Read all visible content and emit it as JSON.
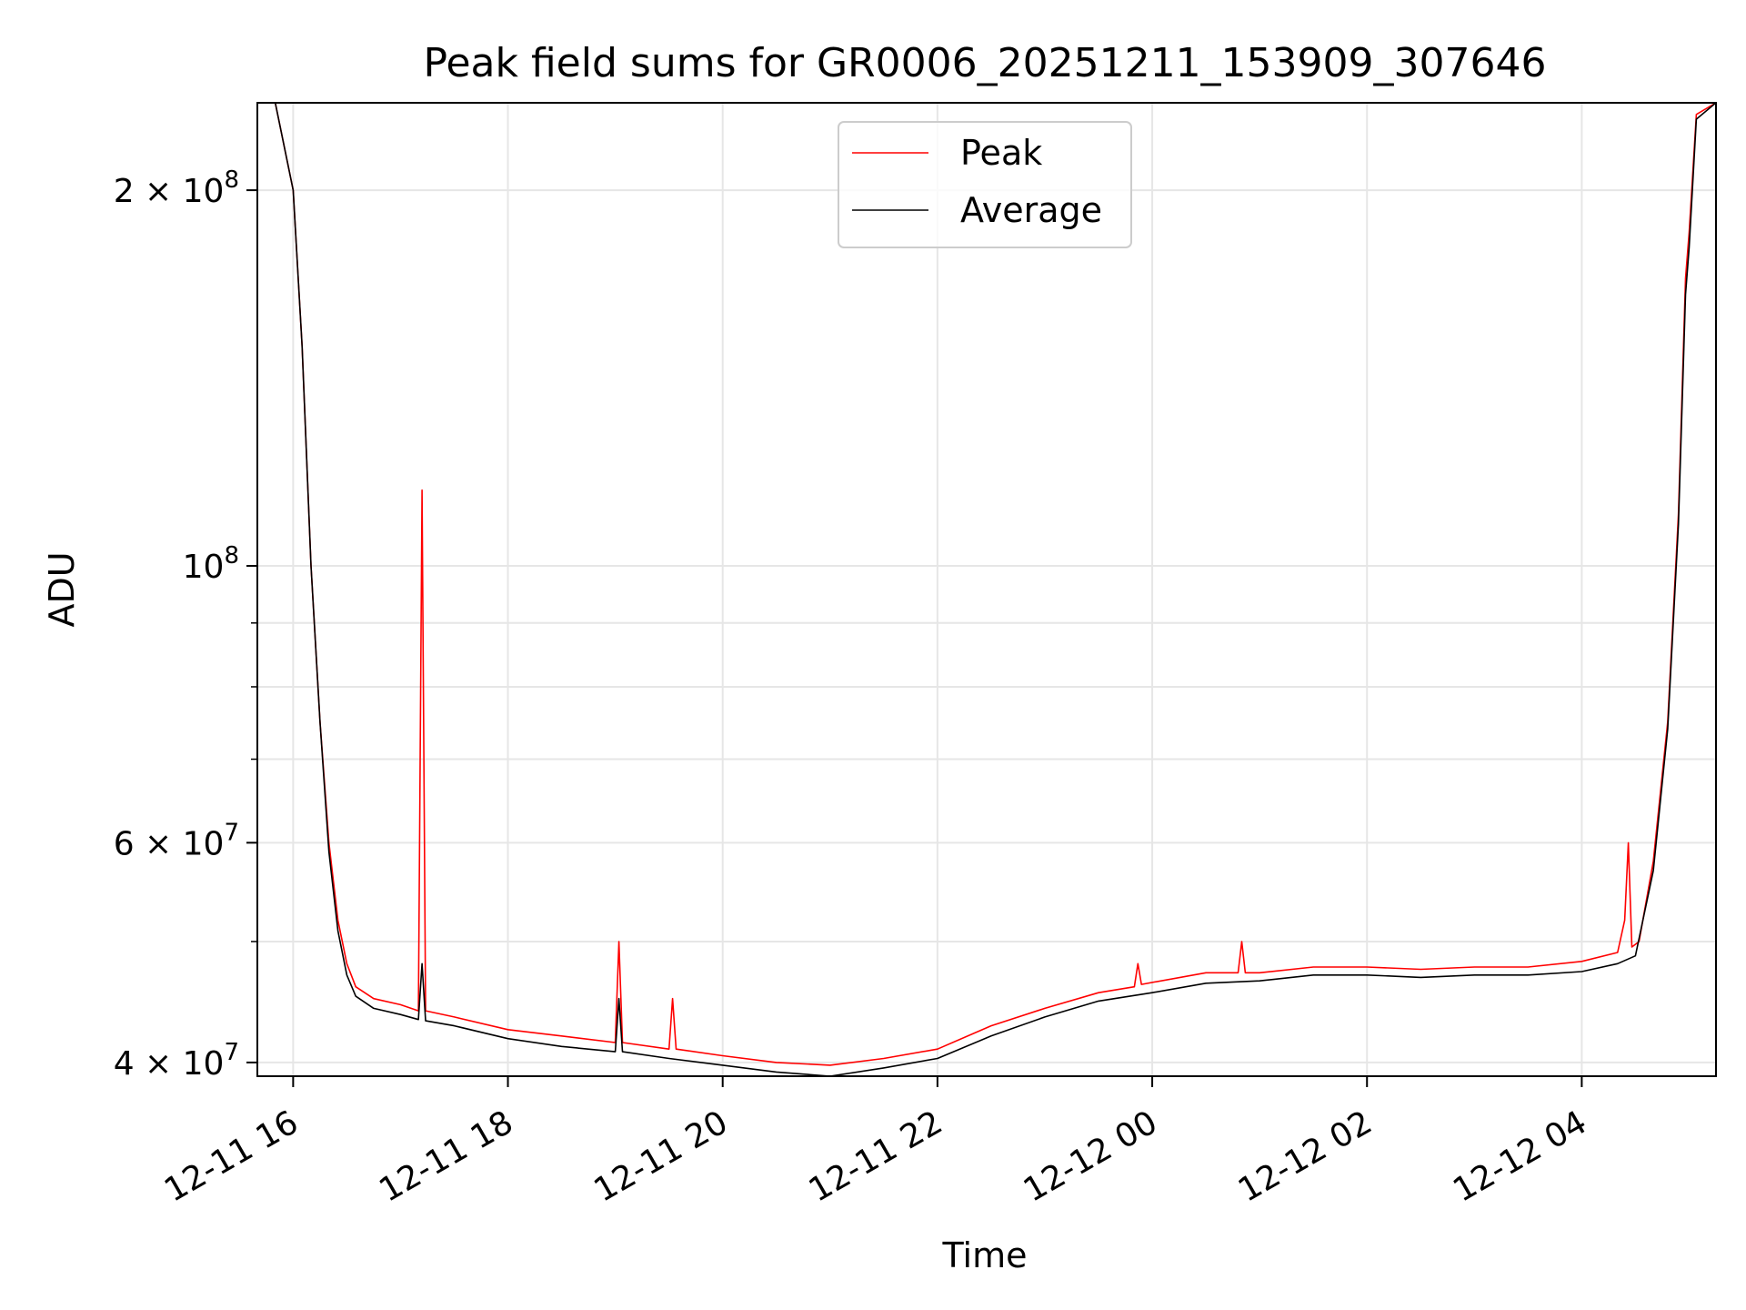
{
  "chart_data": {
    "type": "line",
    "title": "Peak field sums for GR0006_20251211_153909_307646",
    "xlabel": "Time",
    "ylabel": "ADU",
    "yscale": "log",
    "grid": true,
    "legend_placement": "upper center",
    "xlim": [
      "2025-12-11 15:40",
      "2025-12-12 05:15"
    ],
    "ylim": [
      39000000,
      235000000
    ],
    "x_ticks": [
      {
        "value": "2025-12-11 16:00",
        "label": "12-11 16"
      },
      {
        "value": "2025-12-11 18:00",
        "label": "12-11 18"
      },
      {
        "value": "2025-12-11 20:00",
        "label": "12-11 20"
      },
      {
        "value": "2025-12-11 22:00",
        "label": "12-11 22"
      },
      {
        "value": "2025-12-12 00:00",
        "label": "12-12 00"
      },
      {
        "value": "2025-12-12 02:00",
        "label": "12-12 02"
      },
      {
        "value": "2025-12-12 04:00",
        "label": "12-12 04"
      }
    ],
    "y_ticks_major": [
      {
        "value": 40000000,
        "label": "4 × 10",
        "exp": "7"
      },
      {
        "value": 60000000,
        "label": "6 × 10",
        "exp": "7"
      },
      {
        "value": 100000000,
        "label": "10",
        "exp": "8"
      },
      {
        "value": 200000000,
        "label": "2 × 10",
        "exp": "8"
      }
    ],
    "y_ticks_minor": [
      50000000,
      70000000,
      80000000,
      90000000
    ],
    "series": [
      {
        "name": "Peak",
        "color": "#ff0000",
        "x": [
          "2025-12-11 15:40",
          "2025-12-11 15:50",
          "2025-12-11 16:00",
          "2025-12-11 16:05",
          "2025-12-11 16:10",
          "2025-12-11 16:15",
          "2025-12-11 16:20",
          "2025-12-11 16:25",
          "2025-12-11 16:30",
          "2025-12-11 16:35",
          "2025-12-11 16:45",
          "2025-12-11 17:00",
          "2025-12-11 17:10",
          "2025-12-11 17:12",
          "2025-12-11 17:14",
          "2025-12-11 17:30",
          "2025-12-11 18:00",
          "2025-12-11 18:30",
          "2025-12-11 19:00",
          "2025-12-11 19:02",
          "2025-12-11 19:04",
          "2025-12-11 19:30",
          "2025-12-11 19:32",
          "2025-12-11 19:34",
          "2025-12-11 20:00",
          "2025-12-11 20:30",
          "2025-12-11 21:00",
          "2025-12-11 21:30",
          "2025-12-11 22:00",
          "2025-12-11 22:30",
          "2025-12-11 23:00",
          "2025-12-11 23:30",
          "2025-12-11 23:50",
          "2025-12-11 23:52",
          "2025-12-11 23:54",
          "2025-12-12 00:30",
          "2025-12-12 00:48",
          "2025-12-12 00:50",
          "2025-12-12 00:52",
          "2025-12-12 01:00",
          "2025-12-12 01:30",
          "2025-12-12 02:00",
          "2025-12-12 02:30",
          "2025-12-12 03:00",
          "2025-12-12 03:30",
          "2025-12-12 04:00",
          "2025-12-12 04:20",
          "2025-12-12 04:24",
          "2025-12-12 04:26",
          "2025-12-12 04:28",
          "2025-12-12 04:32",
          "2025-12-12 04:40",
          "2025-12-12 04:48",
          "2025-12-12 04:54",
          "2025-12-12 04:58",
          "2025-12-12 05:00",
          "2025-12-12 05:04",
          "2025-12-12 05:15"
        ],
        "y": [
          235000000,
          235000000,
          200000000,
          150000000,
          100000000,
          75000000,
          60000000,
          52000000,
          48000000,
          46000000,
          45000000,
          44500000,
          44000000,
          115000000,
          44000000,
          43500000,
          42500000,
          42000000,
          41500000,
          50000000,
          41500000,
          41000000,
          45000000,
          41000000,
          40500000,
          40000000,
          39800000,
          40300000,
          41000000,
          42800000,
          44200000,
          45500000,
          46000000,
          48000000,
          46200000,
          47200000,
          47200000,
          50000000,
          47200000,
          47200000,
          47700000,
          47700000,
          47500000,
          47700000,
          47700000,
          48200000,
          49000000,
          52000000,
          60000000,
          49500000,
          50000000,
          58000000,
          75000000,
          110000000,
          170000000,
          185000000,
          230000000,
          235000000
        ]
      },
      {
        "name": "Average",
        "color": "#000000",
        "x": [
          "2025-12-11 15:40",
          "2025-12-11 15:50",
          "2025-12-11 16:00",
          "2025-12-11 16:05",
          "2025-12-11 16:10",
          "2025-12-11 16:15",
          "2025-12-11 16:20",
          "2025-12-11 16:25",
          "2025-12-11 16:30",
          "2025-12-11 16:35",
          "2025-12-11 16:45",
          "2025-12-11 17:00",
          "2025-12-11 17:10",
          "2025-12-11 17:12",
          "2025-12-11 17:14",
          "2025-12-11 17:30",
          "2025-12-11 18:00",
          "2025-12-11 18:30",
          "2025-12-11 19:00",
          "2025-12-11 19:02",
          "2025-12-11 19:04",
          "2025-12-11 19:30",
          "2025-12-11 20:00",
          "2025-12-11 20:30",
          "2025-12-11 21:00",
          "2025-12-11 21:30",
          "2025-12-11 22:00",
          "2025-12-11 22:30",
          "2025-12-11 23:00",
          "2025-12-11 23:30",
          "2025-12-12 00:00",
          "2025-12-12 00:30",
          "2025-12-12 01:00",
          "2025-12-12 01:30",
          "2025-12-12 02:00",
          "2025-12-12 02:30",
          "2025-12-12 03:00",
          "2025-12-12 03:30",
          "2025-12-12 04:00",
          "2025-12-12 04:20",
          "2025-12-12 04:30",
          "2025-12-12 04:40",
          "2025-12-12 04:48",
          "2025-12-12 04:54",
          "2025-12-12 04:58",
          "2025-12-12 05:00",
          "2025-12-12 05:04",
          "2025-12-12 05:15"
        ],
        "y": [
          235000000,
          235000000,
          200000000,
          150000000,
          100000000,
          75000000,
          59000000,
          51000000,
          47000000,
          45200000,
          44200000,
          43700000,
          43300000,
          48000000,
          43200000,
          42800000,
          41800000,
          41200000,
          40800000,
          45000000,
          40800000,
          40300000,
          39800000,
          39300000,
          39000000,
          39600000,
          40300000,
          42000000,
          43500000,
          44800000,
          45500000,
          46300000,
          46500000,
          47000000,
          47000000,
          46800000,
          47000000,
          47000000,
          47300000,
          48000000,
          48700000,
          57000000,
          74000000,
          108000000,
          165000000,
          180000000,
          228000000,
          235000000
        ]
      }
    ]
  }
}
